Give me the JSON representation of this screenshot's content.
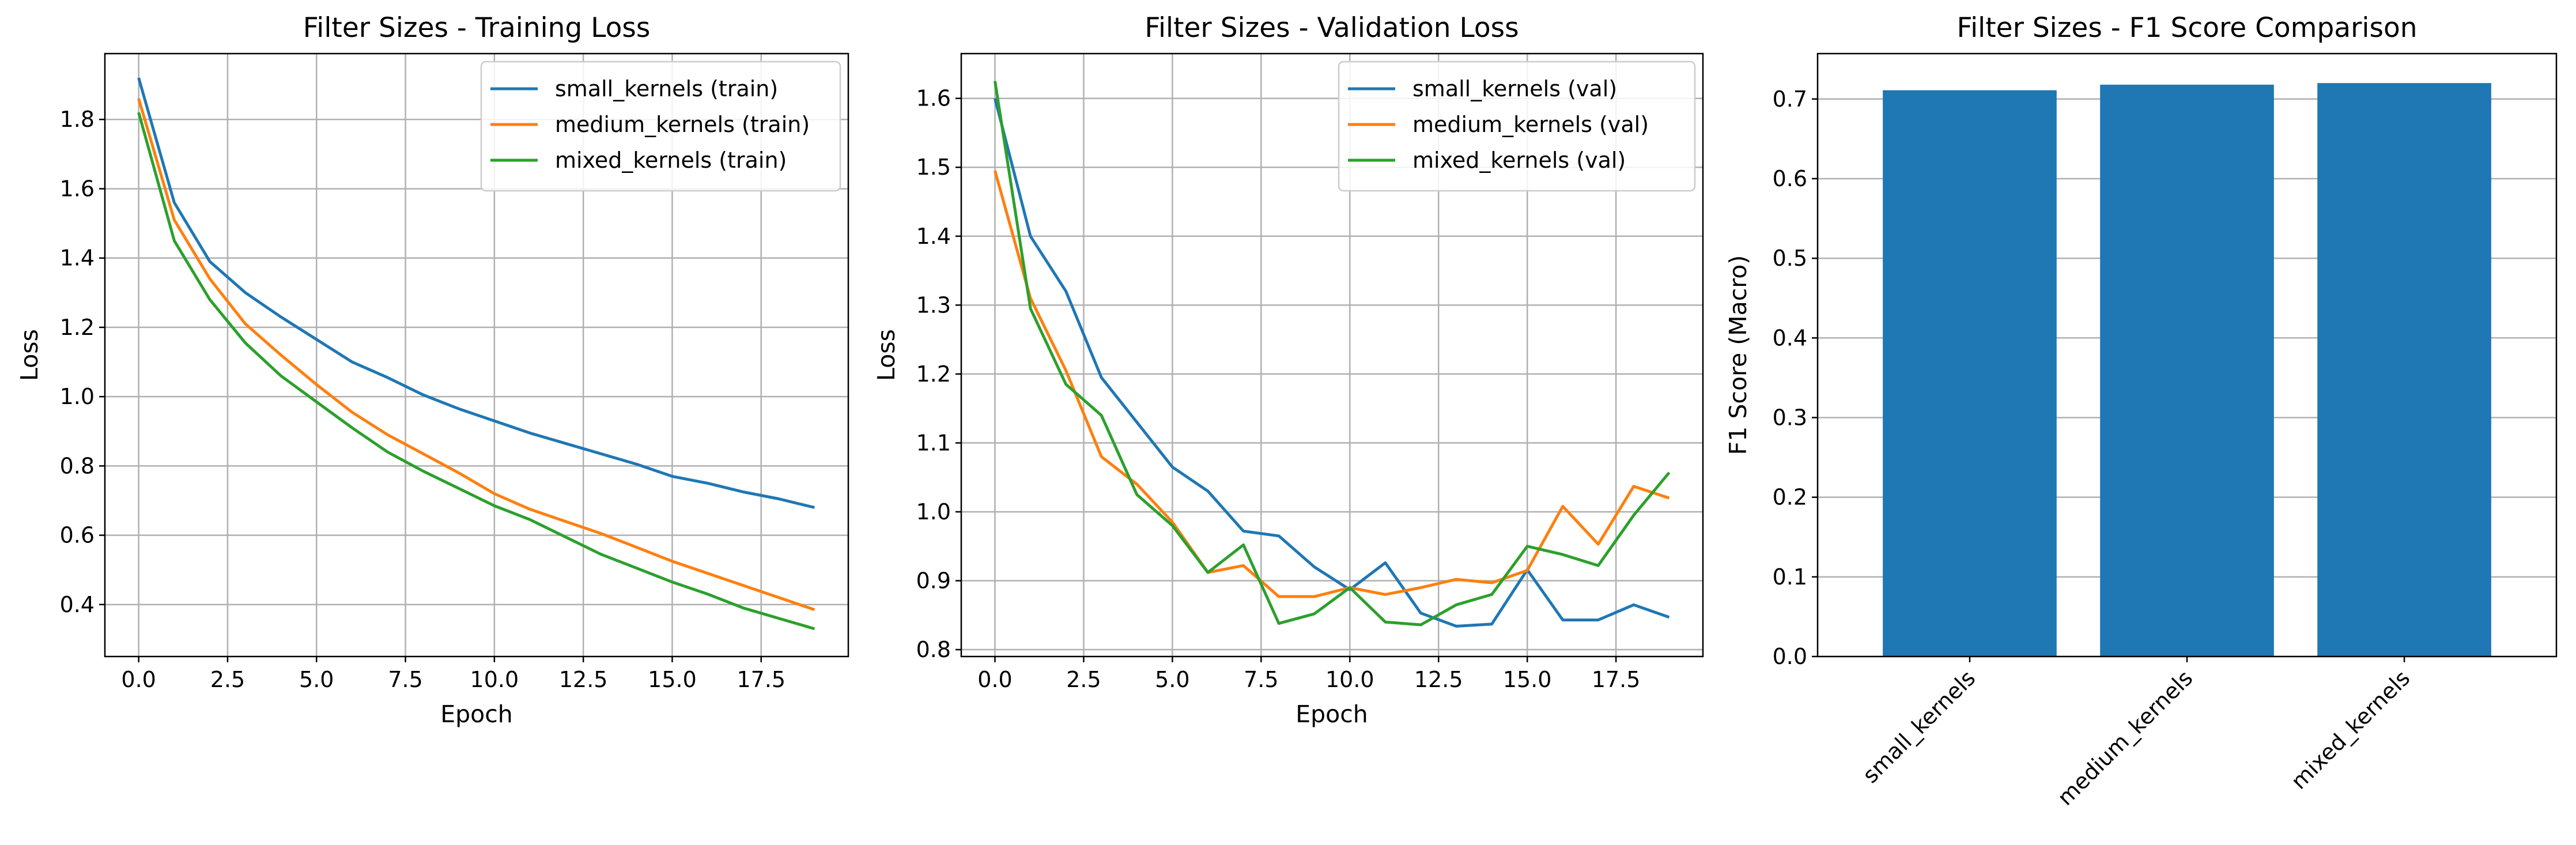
{
  "chart_data": [
    {
      "type": "line",
      "title": "Filter Sizes - Training Loss",
      "xlabel": "Epoch",
      "ylabel": "Loss",
      "xlim": [
        -0.95,
        19.95
      ],
      "ylim": [
        0.25,
        1.99
      ],
      "xticks": [
        "0.0",
        "2.5",
        "5.0",
        "7.5",
        "10.0",
        "12.5",
        "15.0",
        "17.5"
      ],
      "yticks": [
        "0.4",
        "0.6",
        "0.8",
        "1.0",
        "1.2",
        "1.4",
        "1.6",
        "1.8"
      ],
      "grid": true,
      "legend_position": "top-right",
      "x": [
        0,
        1,
        2,
        3,
        4,
        5,
        6,
        7,
        8,
        9,
        10,
        11,
        12,
        13,
        14,
        15,
        16,
        17,
        18,
        19
      ],
      "series": [
        {
          "name": "small_kernels (train)",
          "color": "#1f77b4",
          "values": [
            1.92,
            1.56,
            1.39,
            1.3,
            1.23,
            1.165,
            1.1,
            1.055,
            1.005,
            0.965,
            0.93,
            0.895,
            0.865,
            0.835,
            0.805,
            0.77,
            0.75,
            0.725,
            0.705,
            0.68
          ]
        },
        {
          "name": "medium_kernels (train)",
          "color": "#ff7f0e",
          "values": [
            1.86,
            1.51,
            1.34,
            1.21,
            1.12,
            1.035,
            0.955,
            0.89,
            0.835,
            0.78,
            0.72,
            0.675,
            0.64,
            0.605,
            0.565,
            0.525,
            0.49,
            0.455,
            0.42,
            0.385
          ]
        },
        {
          "name": "mixed_kernels (train)",
          "color": "#2ca02c",
          "values": [
            1.82,
            1.45,
            1.28,
            1.155,
            1.06,
            0.985,
            0.91,
            0.84,
            0.785,
            0.735,
            0.685,
            0.645,
            0.595,
            0.545,
            0.505,
            0.465,
            0.43,
            0.39,
            0.36,
            0.33
          ]
        }
      ]
    },
    {
      "type": "line",
      "title": "Filter Sizes - Validation Loss",
      "xlabel": "Epoch",
      "ylabel": "Loss",
      "xlim": [
        -0.95,
        19.95
      ],
      "ylim": [
        0.79,
        1.665
      ],
      "xticks": [
        "0.0",
        "2.5",
        "5.0",
        "7.5",
        "10.0",
        "12.5",
        "15.0",
        "17.5"
      ],
      "yticks": [
        "0.8",
        "0.9",
        "1.0",
        "1.1",
        "1.2",
        "1.3",
        "1.4",
        "1.5",
        "1.6"
      ],
      "grid": true,
      "legend_position": "top-right",
      "x": [
        0,
        1,
        2,
        3,
        4,
        5,
        6,
        7,
        8,
        9,
        10,
        11,
        12,
        13,
        14,
        15,
        16,
        17,
        18,
        19
      ],
      "series": [
        {
          "name": "small_kernels (val)",
          "color": "#1f77b4",
          "values": [
            1.6,
            1.4,
            1.32,
            1.195,
            1.13,
            1.065,
            1.03,
            0.972,
            0.965,
            0.92,
            0.887,
            0.926,
            0.853,
            0.834,
            0.837,
            0.916,
            0.843,
            0.843,
            0.865,
            0.847
          ]
        },
        {
          "name": "medium_kernels (val)",
          "color": "#ff7f0e",
          "values": [
            1.495,
            1.31,
            1.205,
            1.08,
            1.04,
            0.985,
            0.912,
            0.922,
            0.877,
            0.877,
            0.89,
            0.88,
            0.89,
            0.902,
            0.897,
            0.915,
            1.008,
            0.953,
            1.037,
            1.02
          ]
        },
        {
          "name": "mixed_kernels (val)",
          "color": "#2ca02c",
          "values": [
            1.625,
            1.295,
            1.185,
            1.14,
            1.025,
            0.98,
            0.912,
            0.952,
            0.838,
            0.852,
            0.89,
            0.84,
            0.836,
            0.865,
            0.88,
            0.95,
            0.938,
            0.922,
            0.995,
            1.057
          ]
        }
      ]
    },
    {
      "type": "bar",
      "title": "Filter Sizes - F1 Score Comparison",
      "xlabel": "",
      "ylabel": "F1 Score (Macro)",
      "ylim": [
        0,
        0.757
      ],
      "yticks": [
        "0.0",
        "0.1",
        "0.2",
        "0.3",
        "0.4",
        "0.5",
        "0.6",
        "0.7"
      ],
      "grid": "y",
      "color": "#1f77b4",
      "categories": [
        "small_kernels",
        "medium_kernels",
        "mixed_kernels"
      ],
      "values": [
        0.711,
        0.718,
        0.72
      ]
    }
  ]
}
